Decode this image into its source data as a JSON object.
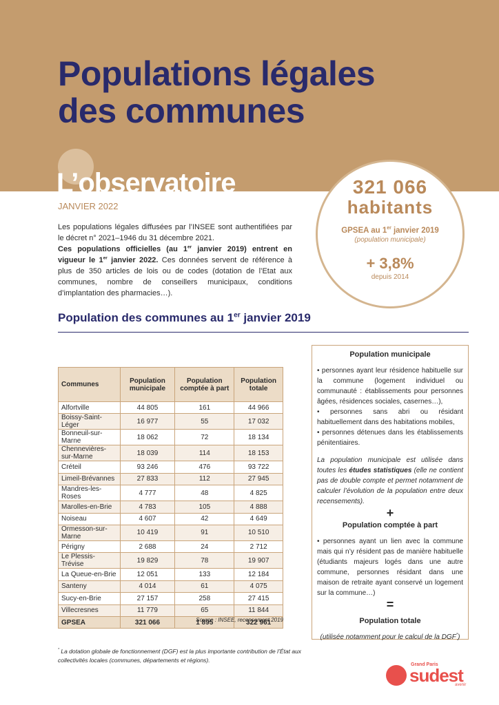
{
  "header": {
    "title_lines": [
      "Populations légales",
      "des communes"
    ],
    "brand": "L’observatoire",
    "date": "JANVIER 2022"
  },
  "highlight": {
    "number": "321 066",
    "unit": "habitants",
    "caption": [
      "GPSEA au 1",
      "er",
      " janvier 2019"
    ],
    "subcaption": "(population municipale)",
    "growth": "+ 3,8%",
    "since": "depuis 2014"
  },
  "intro": {
    "p1": "Les populations légales diffusées par l’INSEE sont authentifiées par le décret n° 2021–1946 du 31 décembre 2021.",
    "p2": [
      "Ces populations officielles (au 1",
      "er",
      " janvier 2019) entrent en vigueur le 1",
      "er",
      " janvier 2022.",
      " Ces données servent de référence à plus de 350 articles de lois ou de codes (dotation de l’Etat aux communes, nombre de conseillers municipaux, conditions d’implantation des pharmacies…)."
    ]
  },
  "section_title": [
    "Population des communes au 1",
    "er",
    " janvier 2019"
  ],
  "table": {
    "headers": [
      "Communes",
      "Population municipale",
      "Population comptée à part",
      "Population totale"
    ],
    "rows": [
      [
        "Alfortville",
        "44 805",
        "161",
        "44 966"
      ],
      [
        "Boissy-Saint-Léger",
        "16 977",
        "55",
        "17 032"
      ],
      [
        "Bonneuil-sur-Marne",
        "18 062",
        "72",
        "18 134"
      ],
      [
        "Chennevières-sur-Marne",
        "18 039",
        "114",
        "18 153"
      ],
      [
        "Créteil",
        "93 246",
        "476",
        "93 722"
      ],
      [
        "Limeil-Brévannes",
        "27 833",
        "112",
        "27 945"
      ],
      [
        "Mandres-les-Roses",
        "4 777",
        "48",
        "4 825"
      ],
      [
        "Marolles-en-Brie",
        "4 783",
        "105",
        "4 888"
      ],
      [
        "Noiseau",
        "4 607",
        "42",
        "4 649"
      ],
      [
        "Ormesson-sur-Marne",
        "10 419",
        "91",
        "10 510"
      ],
      [
        "Périgny",
        "2 688",
        "24",
        "2 712"
      ],
      [
        "Le Plessis-Trévise",
        "19 829",
        "78",
        "19 907"
      ],
      [
        "La Queue-en-Brie",
        "12 051",
        "133",
        "12 184"
      ],
      [
        "Santeny",
        "4 014",
        "61",
        "4 075"
      ],
      [
        "Sucy-en-Brie",
        "27 157",
        "258",
        "27 415"
      ],
      [
        "Villecresnes",
        "11 779",
        "65",
        "11 844"
      ]
    ],
    "total": [
      "GPSEA",
      "321 066",
      "1 895",
      "322 961"
    ]
  },
  "source": "Source : INSEE, recensement 2019",
  "box": {
    "h1": "Population municipale",
    "bullets": [
      "• personnes ayant leur résidence habituelle sur la commune (logement individuel ou communauté : établissements pour personnes âgées, résidences sociales, casernes…),",
      "• personnes sans abri ou résidant habituellement dans des habitations mobiles,",
      "• personnes détenues dans les établissements pénitentiaires."
    ],
    "note": [
      "La population municipale est utilisée dans toutes les ",
      "études statistiques",
      " (elle ne contient pas de double compte et permet notamment de calculer l’évolution de la population entre deux recensements)."
    ],
    "plus": "+",
    "h2": "Population comptée à part",
    "bullet2": "• personnes ayant un lien avec la commune mais qui n’y résident pas de manière habituelle (étudiants majeurs logés dans une autre commune, personnes résidant dans une maison de retraite ayant conservé un logement sur la commune…)",
    "equals": "=",
    "h3": "Population totale",
    "note2": [
      "(utilisée notamment pour le calcul de la DGF",
      "*",
      ")"
    ]
  },
  "footnote": [
    "*",
    " La dotation globale de fonctionnement (DGF) est la plus importante contribution de l’État aux collectivités locales (communes, départements et régions)."
  ],
  "logo": {
    "top": "Grand Paris",
    "main": "sudest",
    "bottom": "avenir"
  }
}
